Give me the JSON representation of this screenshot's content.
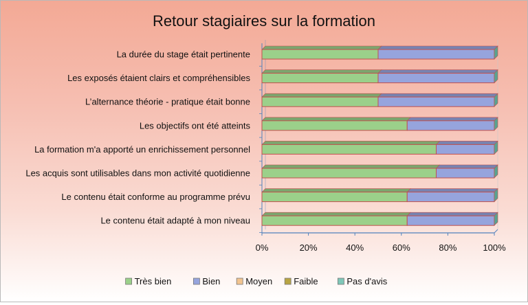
{
  "chart_data": {
    "type": "bar",
    "orientation": "horizontal",
    "stacked": "percent",
    "title": "Retour stagiaires sur la formation",
    "categories": [
      "La durée du stage était pertinente",
      "Les exposés étaient clairs et compréhensibles",
      "L’alternance théorie - pratique était bonne",
      "Les objectifs ont été atteints",
      "La formation m'a apporté un enrichissement personnel",
      "Les acquis sont utilisables dans mon activité quotidienne",
      "Le contenu était conforme au programme prévu",
      "Le contenu était adapté à mon niveau"
    ],
    "series": [
      {
        "name": "Très bien",
        "color": "#9bd08a",
        "values": [
          50,
          50,
          50,
          62.5,
          75,
          75,
          62.5,
          62.5
        ]
      },
      {
        "name": "Bien",
        "color": "#96a4dd",
        "values": [
          50,
          50,
          50,
          37.5,
          25,
          25,
          37.5,
          37.5
        ]
      },
      {
        "name": "Moyen",
        "color": "#f2c48f",
        "values": [
          0,
          0,
          0,
          0,
          0,
          0,
          0,
          0
        ]
      },
      {
        "name": "Faible",
        "color": "#b8a443",
        "values": [
          0,
          0,
          0,
          0,
          0,
          0,
          0,
          0
        ]
      },
      {
        "name": "Pas d'avis",
        "color": "#7fc7b8",
        "values": [
          0,
          0,
          0,
          0,
          0,
          0,
          0,
          0
        ]
      }
    ],
    "xlim": [
      0,
      100
    ],
    "xticks": [
      "0%",
      "20%",
      "40%",
      "60%",
      "80%",
      "100%"
    ],
    "legend_position": "bottom",
    "grid": false,
    "bar_outline_color": "#c0504d",
    "frame_color": "#4f81bd"
  }
}
